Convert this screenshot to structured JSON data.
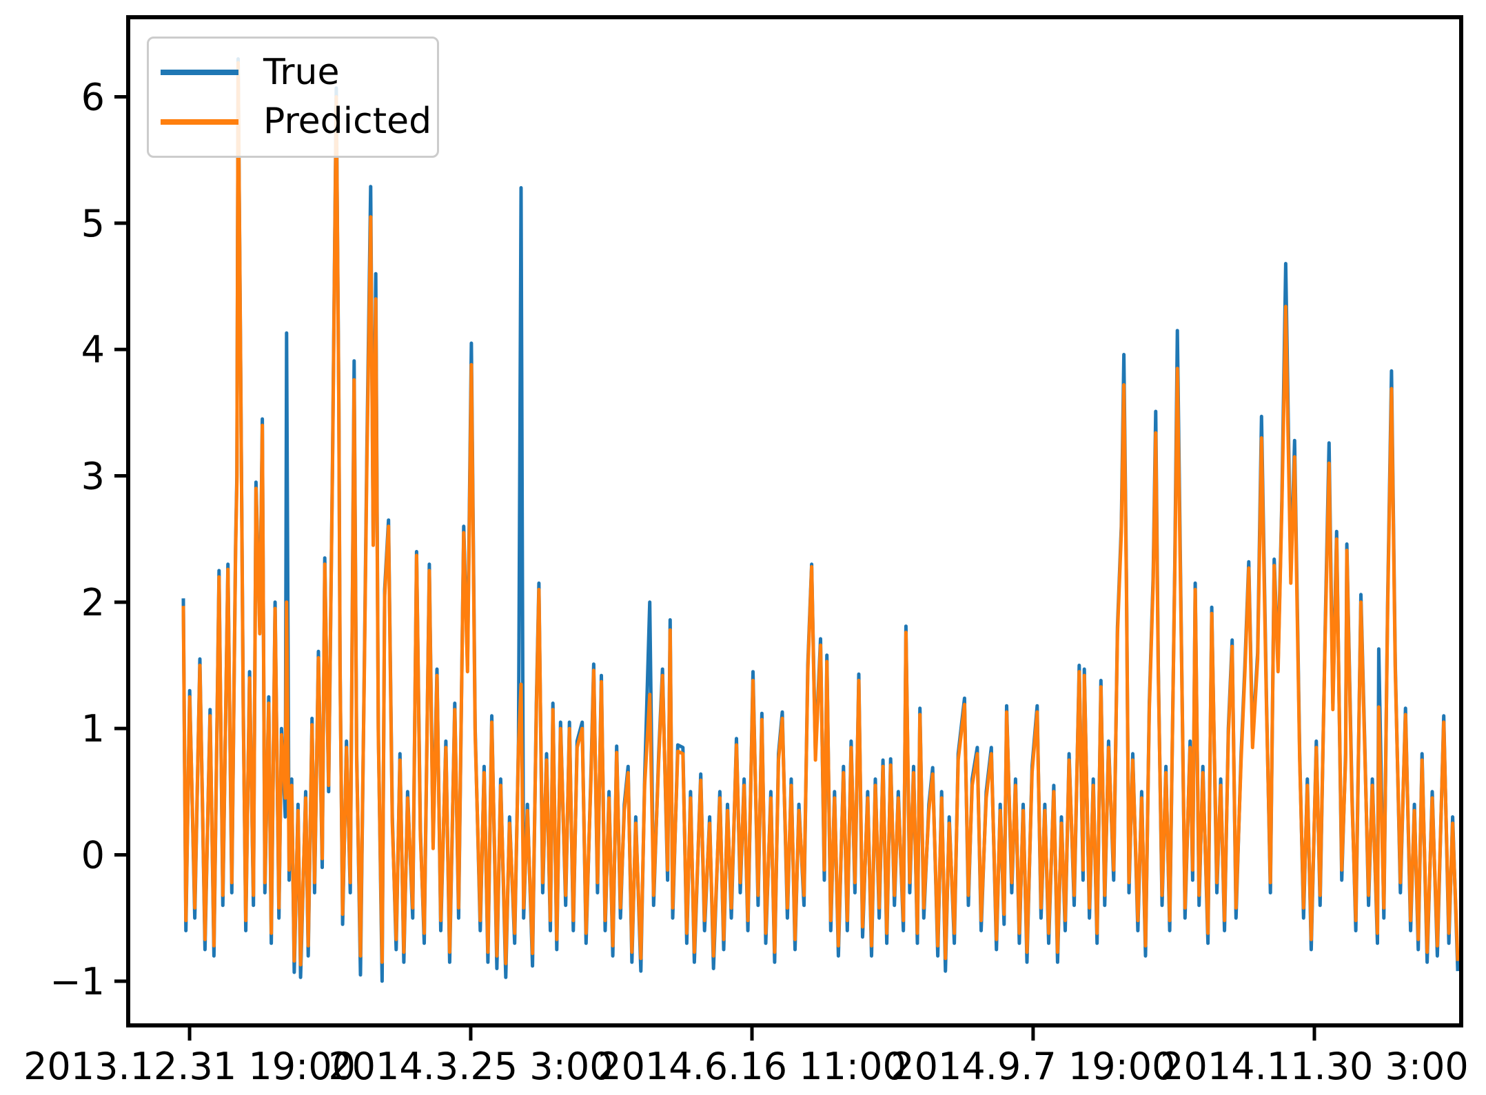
{
  "figure": {
    "background": "#ffffff",
    "border_color": "#000000",
    "text_color": "#000000"
  },
  "legend": {
    "position": "upper-left",
    "items": [
      {
        "label": "True",
        "color": "#1f77b4"
      },
      {
        "label": "Predicted",
        "color": "#ff7f0e"
      }
    ]
  },
  "chart_data": {
    "type": "line",
    "title": "",
    "xlabel": "",
    "ylabel": "",
    "grid": false,
    "legend_position": "upper left",
    "ylim": [
      -1.35,
      6.63
    ],
    "xlim": [
      0,
      1
    ],
    "y_ticks": [
      {
        "value": -1,
        "label": "−1"
      },
      {
        "value": 0,
        "label": "0"
      },
      {
        "value": 1,
        "label": "1"
      },
      {
        "value": 2,
        "label": "2"
      },
      {
        "value": 3,
        "label": "3"
      },
      {
        "value": 4,
        "label": "4"
      },
      {
        "value": 5,
        "label": "5"
      },
      {
        "value": 6,
        "label": "6"
      }
    ],
    "x_ticks": [
      {
        "pos": 0.0049,
        "label": "2013.12.31 19:00"
      },
      {
        "pos": 0.2255,
        "label": "2014.3.25 3:00"
      },
      {
        "pos": 0.4462,
        "label": "2014.6.16 11:00"
      },
      {
        "pos": 0.6668,
        "label": "2014.9.7 19:00"
      },
      {
        "pos": 0.8875,
        "label": "2014.11.30 3:00"
      }
    ],
    "x_unit": "fraction of time range 2013.12.31 19:00 → 2014.12 end",
    "x": [
      0.0,
      0.002,
      0.005,
      0.009,
      0.013,
      0.017,
      0.021,
      0.024,
      0.028,
      0.031,
      0.035,
      0.038,
      0.041,
      0.042,
      0.043,
      0.045,
      0.047,
      0.049,
      0.052,
      0.055,
      0.057,
      0.06,
      0.062,
      0.064,
      0.067,
      0.069,
      0.072,
      0.075,
      0.077,
      0.08,
      0.081,
      0.083,
      0.085,
      0.087,
      0.09,
      0.092,
      0.096,
      0.098,
      0.101,
      0.103,
      0.106,
      0.109,
      0.111,
      0.114,
      0.117,
      0.12,
      0.122,
      0.123,
      0.125,
      0.128,
      0.131,
      0.134,
      0.136,
      0.139,
      0.142,
      0.144,
      0.147,
      0.149,
      0.151,
      0.153,
      0.156,
      0.158,
      0.161,
      0.164,
      0.167,
      0.17,
      0.173,
      0.176,
      0.18,
      0.183,
      0.186,
      0.189,
      0.193,
      0.196,
      0.199,
      0.202,
      0.206,
      0.209,
      0.213,
      0.216,
      0.22,
      0.223,
      0.226,
      0.229,
      0.233,
      0.236,
      0.239,
      0.242,
      0.246,
      0.249,
      0.253,
      0.256,
      0.26,
      0.263,
      0.265,
      0.267,
      0.27,
      0.274,
      0.277,
      0.279,
      0.282,
      0.285,
      0.288,
      0.29,
      0.293,
      0.296,
      0.3,
      0.303,
      0.306,
      0.309,
      0.313,
      0.316,
      0.32,
      0.322,
      0.325,
      0.328,
      0.331,
      0.334,
      0.337,
      0.34,
      0.343,
      0.346,
      0.349,
      0.352,
      0.355,
      0.359,
      0.362,
      0.366,
      0.369,
      0.373,
      0.376,
      0.38,
      0.382,
      0.384,
      0.388,
      0.392,
      0.395,
      0.398,
      0.401,
      0.406,
      0.409,
      0.413,
      0.416,
      0.421,
      0.424,
      0.427,
      0.43,
      0.434,
      0.437,
      0.44,
      0.443,
      0.447,
      0.451,
      0.454,
      0.457,
      0.461,
      0.464,
      0.467,
      0.47,
      0.474,
      0.477,
      0.48,
      0.483,
      0.487,
      0.49,
      0.493,
      0.496,
      0.5,
      0.503,
      0.505,
      0.508,
      0.511,
      0.514,
      0.518,
      0.521,
      0.524,
      0.527,
      0.53,
      0.533,
      0.537,
      0.54,
      0.543,
      0.546,
      0.549,
      0.552,
      0.555,
      0.558,
      0.561,
      0.565,
      0.567,
      0.57,
      0.573,
      0.576,
      0.578,
      0.581,
      0.585,
      0.588,
      0.592,
      0.595,
      0.598,
      0.601,
      0.605,
      0.608,
      0.613,
      0.616,
      0.619,
      0.623,
      0.626,
      0.63,
      0.634,
      0.638,
      0.641,
      0.644,
      0.646,
      0.65,
      0.653,
      0.656,
      0.659,
      0.662,
      0.666,
      0.67,
      0.673,
      0.676,
      0.679,
      0.683,
      0.686,
      0.689,
      0.692,
      0.695,
      0.699,
      0.703,
      0.706,
      0.707,
      0.711,
      0.714,
      0.717,
      0.72,
      0.723,
      0.726,
      0.73,
      0.733,
      0.736,
      0.738,
      0.74,
      0.742,
      0.745,
      0.749,
      0.752,
      0.755,
      0.758,
      0.761,
      0.763,
      0.765,
      0.768,
      0.771,
      0.774,
      0.778,
      0.78,
      0.783,
      0.786,
      0.79,
      0.792,
      0.794,
      0.797,
      0.8,
      0.804,
      0.807,
      0.811,
      0.814,
      0.817,
      0.82,
      0.823,
      0.826,
      0.83,
      0.833,
      0.836,
      0.839,
      0.843,
      0.846,
      0.85,
      0.853,
      0.856,
      0.859,
      0.862,
      0.865,
      0.869,
      0.872,
      0.876,
      0.879,
      0.882,
      0.885,
      0.889,
      0.892,
      0.896,
      0.899,
      0.902,
      0.905,
      0.909,
      0.912,
      0.913,
      0.917,
      0.92,
      0.924,
      0.927,
      0.93,
      0.933,
      0.937,
      0.938,
      0.942,
      0.945,
      0.948,
      0.951,
      0.955,
      0.959,
      0.963,
      0.966,
      0.969,
      0.972,
      0.976,
      0.98,
      0.984,
      0.989,
      0.993,
      0.996,
      1.0
    ],
    "series": [
      {
        "name": "True",
        "color": "#1f77b4",
        "values": [
          2.03,
          -0.6,
          1.3,
          -0.5,
          1.55,
          -0.75,
          1.15,
          -0.8,
          2.25,
          -0.4,
          2.3,
          -0.3,
          2.45,
          3.0,
          6.3,
          3.85,
          1.2,
          -0.6,
          1.45,
          -0.4,
          2.95,
          1.8,
          3.45,
          -0.3,
          1.25,
          -0.7,
          2.0,
          -0.5,
          1.0,
          0.3,
          4.13,
          -0.2,
          0.6,
          -0.93,
          0.4,
          -0.97,
          0.5,
          -0.8,
          1.08,
          -0.3,
          1.61,
          -0.1,
          2.35,
          0.5,
          3.05,
          6.07,
          3.6,
          1.5,
          -0.55,
          0.9,
          -0.3,
          3.91,
          0.8,
          -0.95,
          1.5,
          3.2,
          5.29,
          2.5,
          4.6,
          1.0,
          -1.0,
          2.1,
          2.65,
          0.3,
          -0.75,
          0.8,
          -0.85,
          0.5,
          -0.5,
          2.4,
          0.2,
          -0.7,
          2.3,
          0.1,
          1.47,
          -0.6,
          0.9,
          -0.85,
          1.2,
          -0.5,
          2.6,
          1.5,
          4.05,
          1.0,
          -0.6,
          0.7,
          -0.85,
          1.1,
          -0.9,
          0.6,
          -0.97,
          0.3,
          -0.7,
          0.9,
          5.28,
          -0.5,
          0.4,
          -0.88,
          1.2,
          2.15,
          -0.3,
          0.8,
          -0.6,
          1.2,
          -0.75,
          1.05,
          -0.4,
          1.05,
          -0.6,
          0.9,
          1.05,
          -0.7,
          0.7,
          1.51,
          -0.3,
          1.42,
          -0.6,
          0.5,
          -0.8,
          0.86,
          -0.5,
          0.4,
          0.7,
          -0.85,
          0.3,
          -0.92,
          0.6,
          2.0,
          -0.4,
          0.8,
          1.47,
          -0.2,
          1.86,
          -0.5,
          0.87,
          0.85,
          -0.7,
          0.5,
          -0.85,
          0.64,
          -0.6,
          0.3,
          -0.9,
          0.5,
          -0.75,
          0.4,
          -0.5,
          0.92,
          -0.3,
          0.6,
          -0.6,
          1.45,
          -0.4,
          1.12,
          -0.7,
          0.5,
          -0.85,
          0.8,
          1.13,
          -0.5,
          0.6,
          -0.75,
          0.4,
          -0.4,
          1.5,
          2.3,
          0.8,
          1.71,
          -0.2,
          1.58,
          -0.6,
          0.5,
          -0.8,
          0.7,
          -0.6,
          0.9,
          -0.3,
          1.43,
          -0.65,
          0.5,
          -0.8,
          0.6,
          -0.5,
          0.75,
          -0.7,
          0.76,
          -0.4,
          0.5,
          -0.6,
          1.81,
          -0.3,
          0.7,
          -0.7,
          1.16,
          -0.5,
          0.4,
          0.69,
          -0.8,
          0.5,
          -0.92,
          0.3,
          -0.7,
          0.8,
          1.24,
          -0.4,
          0.6,
          0.85,
          -0.6,
          0.5,
          0.85,
          -0.75,
          0.4,
          -0.55,
          1.18,
          -0.3,
          0.6,
          -0.7,
          0.4,
          -0.85,
          0.7,
          1.18,
          -0.5,
          0.4,
          -0.7,
          0.55,
          -0.85,
          0.3,
          -0.6,
          0.8,
          -0.4,
          1.5,
          -0.2,
          1.47,
          -0.5,
          0.6,
          -0.7,
          1.38,
          -0.4,
          0.9,
          -0.2,
          1.8,
          2.6,
          3.96,
          2.2,
          -0.3,
          0.8,
          -0.6,
          0.5,
          -0.8,
          1.2,
          2.2,
          3.51,
          1.5,
          -0.4,
          0.7,
          -0.6,
          2.3,
          4.15,
          1.8,
          -0.5,
          0.9,
          -0.2,
          2.15,
          -0.4,
          0.7,
          -0.7,
          1.96,
          -0.3,
          0.6,
          -0.6,
          1.0,
          1.7,
          -0.5,
          0.8,
          1.5,
          2.32,
          0.9,
          1.6,
          3.47,
          1.2,
          -0.3,
          2.34,
          1.5,
          2.8,
          4.68,
          2.2,
          3.28,
          0.8,
          -0.5,
          0.6,
          -0.75,
          0.9,
          -0.4,
          1.8,
          3.26,
          1.2,
          2.56,
          -0.2,
          0.8,
          2.46,
          0.5,
          -0.6,
          2.06,
          0.9,
          -0.4,
          0.6,
          -0.7,
          1.63,
          -0.5,
          2.0,
          3.83,
          1.5,
          -0.3,
          1.16,
          -0.6,
          0.4,
          -0.75,
          0.8,
          -0.85,
          0.5,
          -0.8,
          1.1,
          -0.7,
          0.3,
          -0.92
        ]
      },
      {
        "name": "Predicted",
        "color": "#ff7f0e",
        "values": [
          1.97,
          -0.52,
          1.25,
          -0.42,
          1.5,
          -0.67,
          1.1,
          -0.72,
          2.2,
          -0.32,
          2.26,
          -0.22,
          2.4,
          2.95,
          6.27,
          3.8,
          1.15,
          -0.52,
          1.4,
          -0.32,
          2.9,
          1.75,
          3.4,
          -0.22,
          1.2,
          -0.62,
          1.95,
          -0.42,
          0.95,
          0.45,
          2.0,
          -0.12,
          0.55,
          -0.84,
          0.35,
          -0.87,
          0.45,
          -0.72,
          1.03,
          -0.22,
          1.56,
          -0.03,
          2.3,
          0.55,
          3.0,
          6.0,
          3.55,
          1.45,
          -0.47,
          0.85,
          -0.22,
          3.76,
          0.75,
          -0.8,
          1.45,
          3.1,
          5.05,
          2.45,
          4.4,
          0.95,
          -0.85,
          2.05,
          2.6,
          0.25,
          -0.67,
          0.75,
          -0.77,
          0.45,
          -0.42,
          2.37,
          0.15,
          -0.62,
          2.25,
          0.05,
          1.42,
          -0.52,
          0.85,
          -0.77,
          1.15,
          -0.42,
          2.55,
          1.45,
          3.88,
          0.95,
          -0.52,
          0.65,
          -0.77,
          1.05,
          -0.8,
          0.55,
          -0.86,
          0.25,
          -0.62,
          0.85,
          1.35,
          -0.42,
          0.35,
          -0.78,
          1.15,
          2.1,
          -0.22,
          0.75,
          -0.52,
          1.15,
          -0.67,
          1.0,
          -0.32,
          1.0,
          -0.52,
          0.85,
          1.0,
          -0.62,
          0.65,
          1.46,
          -0.22,
          1.37,
          -0.52,
          0.45,
          -0.72,
          0.81,
          -0.42,
          0.35,
          0.65,
          -0.77,
          0.25,
          -0.82,
          0.55,
          1.27,
          -0.32,
          0.75,
          1.42,
          -0.12,
          1.78,
          -0.42,
          0.82,
          0.8,
          -0.62,
          0.45,
          -0.77,
          0.59,
          -0.52,
          0.25,
          -0.8,
          0.45,
          -0.67,
          0.35,
          -0.42,
          0.87,
          -0.22,
          0.55,
          -0.52,
          1.38,
          -0.32,
          1.07,
          -0.62,
          0.45,
          -0.77,
          0.75,
          1.08,
          -0.42,
          0.55,
          -0.67,
          0.35,
          -0.32,
          1.45,
          2.28,
          0.75,
          1.66,
          -0.12,
          1.53,
          -0.52,
          0.45,
          -0.72,
          0.65,
          -0.52,
          0.85,
          -0.22,
          1.38,
          -0.57,
          0.45,
          -0.72,
          0.55,
          -0.42,
          0.7,
          -0.62,
          0.71,
          -0.32,
          0.45,
          -0.52,
          1.76,
          -0.22,
          0.65,
          -0.62,
          1.11,
          -0.42,
          0.35,
          0.64,
          -0.72,
          0.45,
          -0.82,
          0.25,
          -0.62,
          0.75,
          1.19,
          -0.32,
          0.55,
          0.8,
          -0.52,
          0.45,
          0.8,
          -0.67,
          0.35,
          -0.47,
          1.13,
          -0.22,
          0.55,
          -0.62,
          0.35,
          -0.77,
          0.65,
          1.13,
          -0.42,
          0.35,
          -0.62,
          0.5,
          -0.77,
          0.25,
          -0.52,
          0.75,
          -0.32,
          1.45,
          -0.12,
          1.42,
          -0.42,
          0.55,
          -0.62,
          1.33,
          -0.32,
          0.85,
          -0.12,
          1.75,
          2.55,
          3.72,
          2.15,
          -0.22,
          0.75,
          -0.52,
          0.45,
          -0.72,
          1.15,
          2.15,
          3.34,
          1.45,
          -0.32,
          0.65,
          -0.52,
          2.25,
          3.85,
          1.75,
          -0.42,
          0.85,
          -0.12,
          2.1,
          -0.32,
          0.65,
          -0.62,
          1.91,
          -0.22,
          0.55,
          -0.52,
          0.95,
          1.65,
          -0.42,
          0.75,
          1.45,
          2.27,
          0.85,
          1.55,
          3.3,
          1.15,
          -0.22,
          2.29,
          1.45,
          2.75,
          4.34,
          2.15,
          3.15,
          0.75,
          -0.42,
          0.55,
          -0.67,
          0.85,
          -0.32,
          1.75,
          3.1,
          1.15,
          2.5,
          -0.12,
          0.75,
          2.41,
          0.45,
          -0.52,
          2.0,
          0.85,
          -0.32,
          0.55,
          -0.62,
          1.17,
          -0.42,
          1.95,
          3.69,
          1.45,
          -0.22,
          1.11,
          -0.52,
          0.35,
          -0.67,
          0.75,
          -0.77,
          0.45,
          -0.72,
          1.05,
          -0.62,
          0.25,
          -0.84
        ]
      }
    ]
  }
}
